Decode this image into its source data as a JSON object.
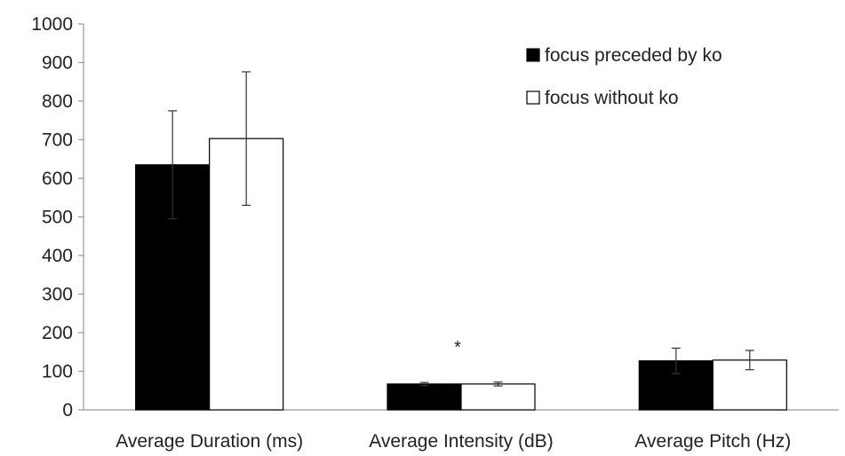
{
  "chart_data": {
    "type": "bar",
    "categories": [
      "Average Duration (ms)",
      "Average Intensity (dB)",
      "Average Pitch (Hz)"
    ],
    "series": [
      {
        "name": "focus preceded by ko",
        "values": [
          635,
          67,
          127
        ],
        "error": [
          140,
          4,
          33
        ],
        "color": "#000000"
      },
      {
        "name": "focus without ko",
        "values": [
          703,
          67,
          129
        ],
        "error": [
          173,
          5,
          25
        ],
        "color": "#ffffff"
      }
    ],
    "y_ticks": [
      "0",
      "100",
      "200",
      "300",
      "400",
      "500",
      "600",
      "700",
      "800",
      "900",
      "1000"
    ],
    "ylim": [
      0,
      1000
    ],
    "annotations": [
      {
        "text": "*",
        "category": "Average Intensity (dB)"
      }
    ],
    "grid": false,
    "legend_position": "top-right"
  }
}
